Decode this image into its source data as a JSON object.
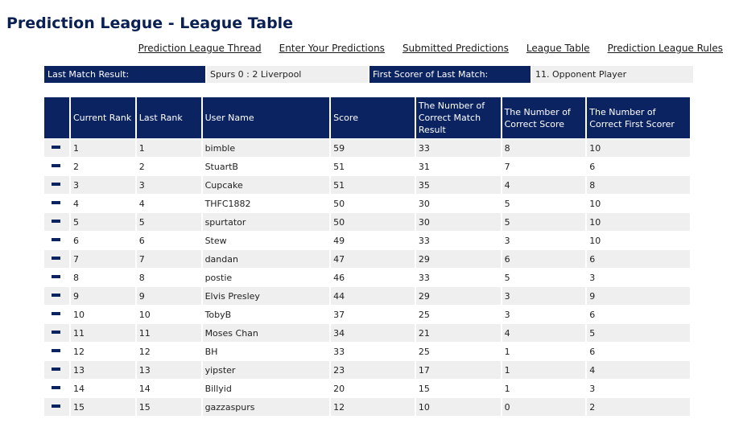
{
  "page": {
    "title": "Prediction League - League Table"
  },
  "nav": {
    "links": [
      "Prediction League Thread",
      "Enter Your Predictions",
      "Submitted Predictions",
      "League Table",
      "Prediction League Rules"
    ]
  },
  "info": {
    "last_match_label": "Last Match Result:",
    "last_match_value": "Spurs 0 : 2 Liverpool",
    "first_scorer_label": "First Scorer of Last Match:",
    "first_scorer_value": "11. Opponent Player"
  },
  "table": {
    "columns": [
      "",
      "Current Rank",
      "Last Rank",
      "User Name",
      "Score",
      "The Number of Correct Match Result",
      "The Number of Correct Score",
      "The Number of Correct First Scorer"
    ],
    "trend_icon": "minus-icon",
    "rows": [
      [
        "1",
        "1",
        "bimble",
        "59",
        "33",
        "8",
        "10"
      ],
      [
        "2",
        "2",
        "StuartB",
        "51",
        "31",
        "7",
        "6"
      ],
      [
        "3",
        "3",
        "Cupcake",
        "51",
        "35",
        "4",
        "8"
      ],
      [
        "4",
        "4",
        "THFC1882",
        "50",
        "30",
        "5",
        "10"
      ],
      [
        "5",
        "5",
        "spurtator",
        "50",
        "30",
        "5",
        "10"
      ],
      [
        "6",
        "6",
        "Stew",
        "49",
        "33",
        "3",
        "10"
      ],
      [
        "7",
        "7",
        "dandan",
        "47",
        "29",
        "6",
        "6"
      ],
      [
        "8",
        "8",
        "postie",
        "46",
        "33",
        "5",
        "3"
      ],
      [
        "9",
        "9",
        "Elvis Presley",
        "44",
        "29",
        "3",
        "9"
      ],
      [
        "10",
        "10",
        "TobyB",
        "37",
        "25",
        "3",
        "6"
      ],
      [
        "11",
        "11",
        "Moses Chan",
        "34",
        "21",
        "4",
        "5"
      ],
      [
        "12",
        "12",
        "BH",
        "33",
        "25",
        "1",
        "6"
      ],
      [
        "13",
        "13",
        "yipster",
        "23",
        "17",
        "1",
        "4"
      ],
      [
        "14",
        "14",
        "Billyid",
        "20",
        "15",
        "1",
        "3"
      ],
      [
        "15",
        "15",
        "gazzaspurs",
        "12",
        "10",
        "0",
        "2"
      ]
    ]
  },
  "colors": {
    "header_bg": "#0b2461",
    "title": "#0a1f52",
    "stripe": "#efefef"
  }
}
